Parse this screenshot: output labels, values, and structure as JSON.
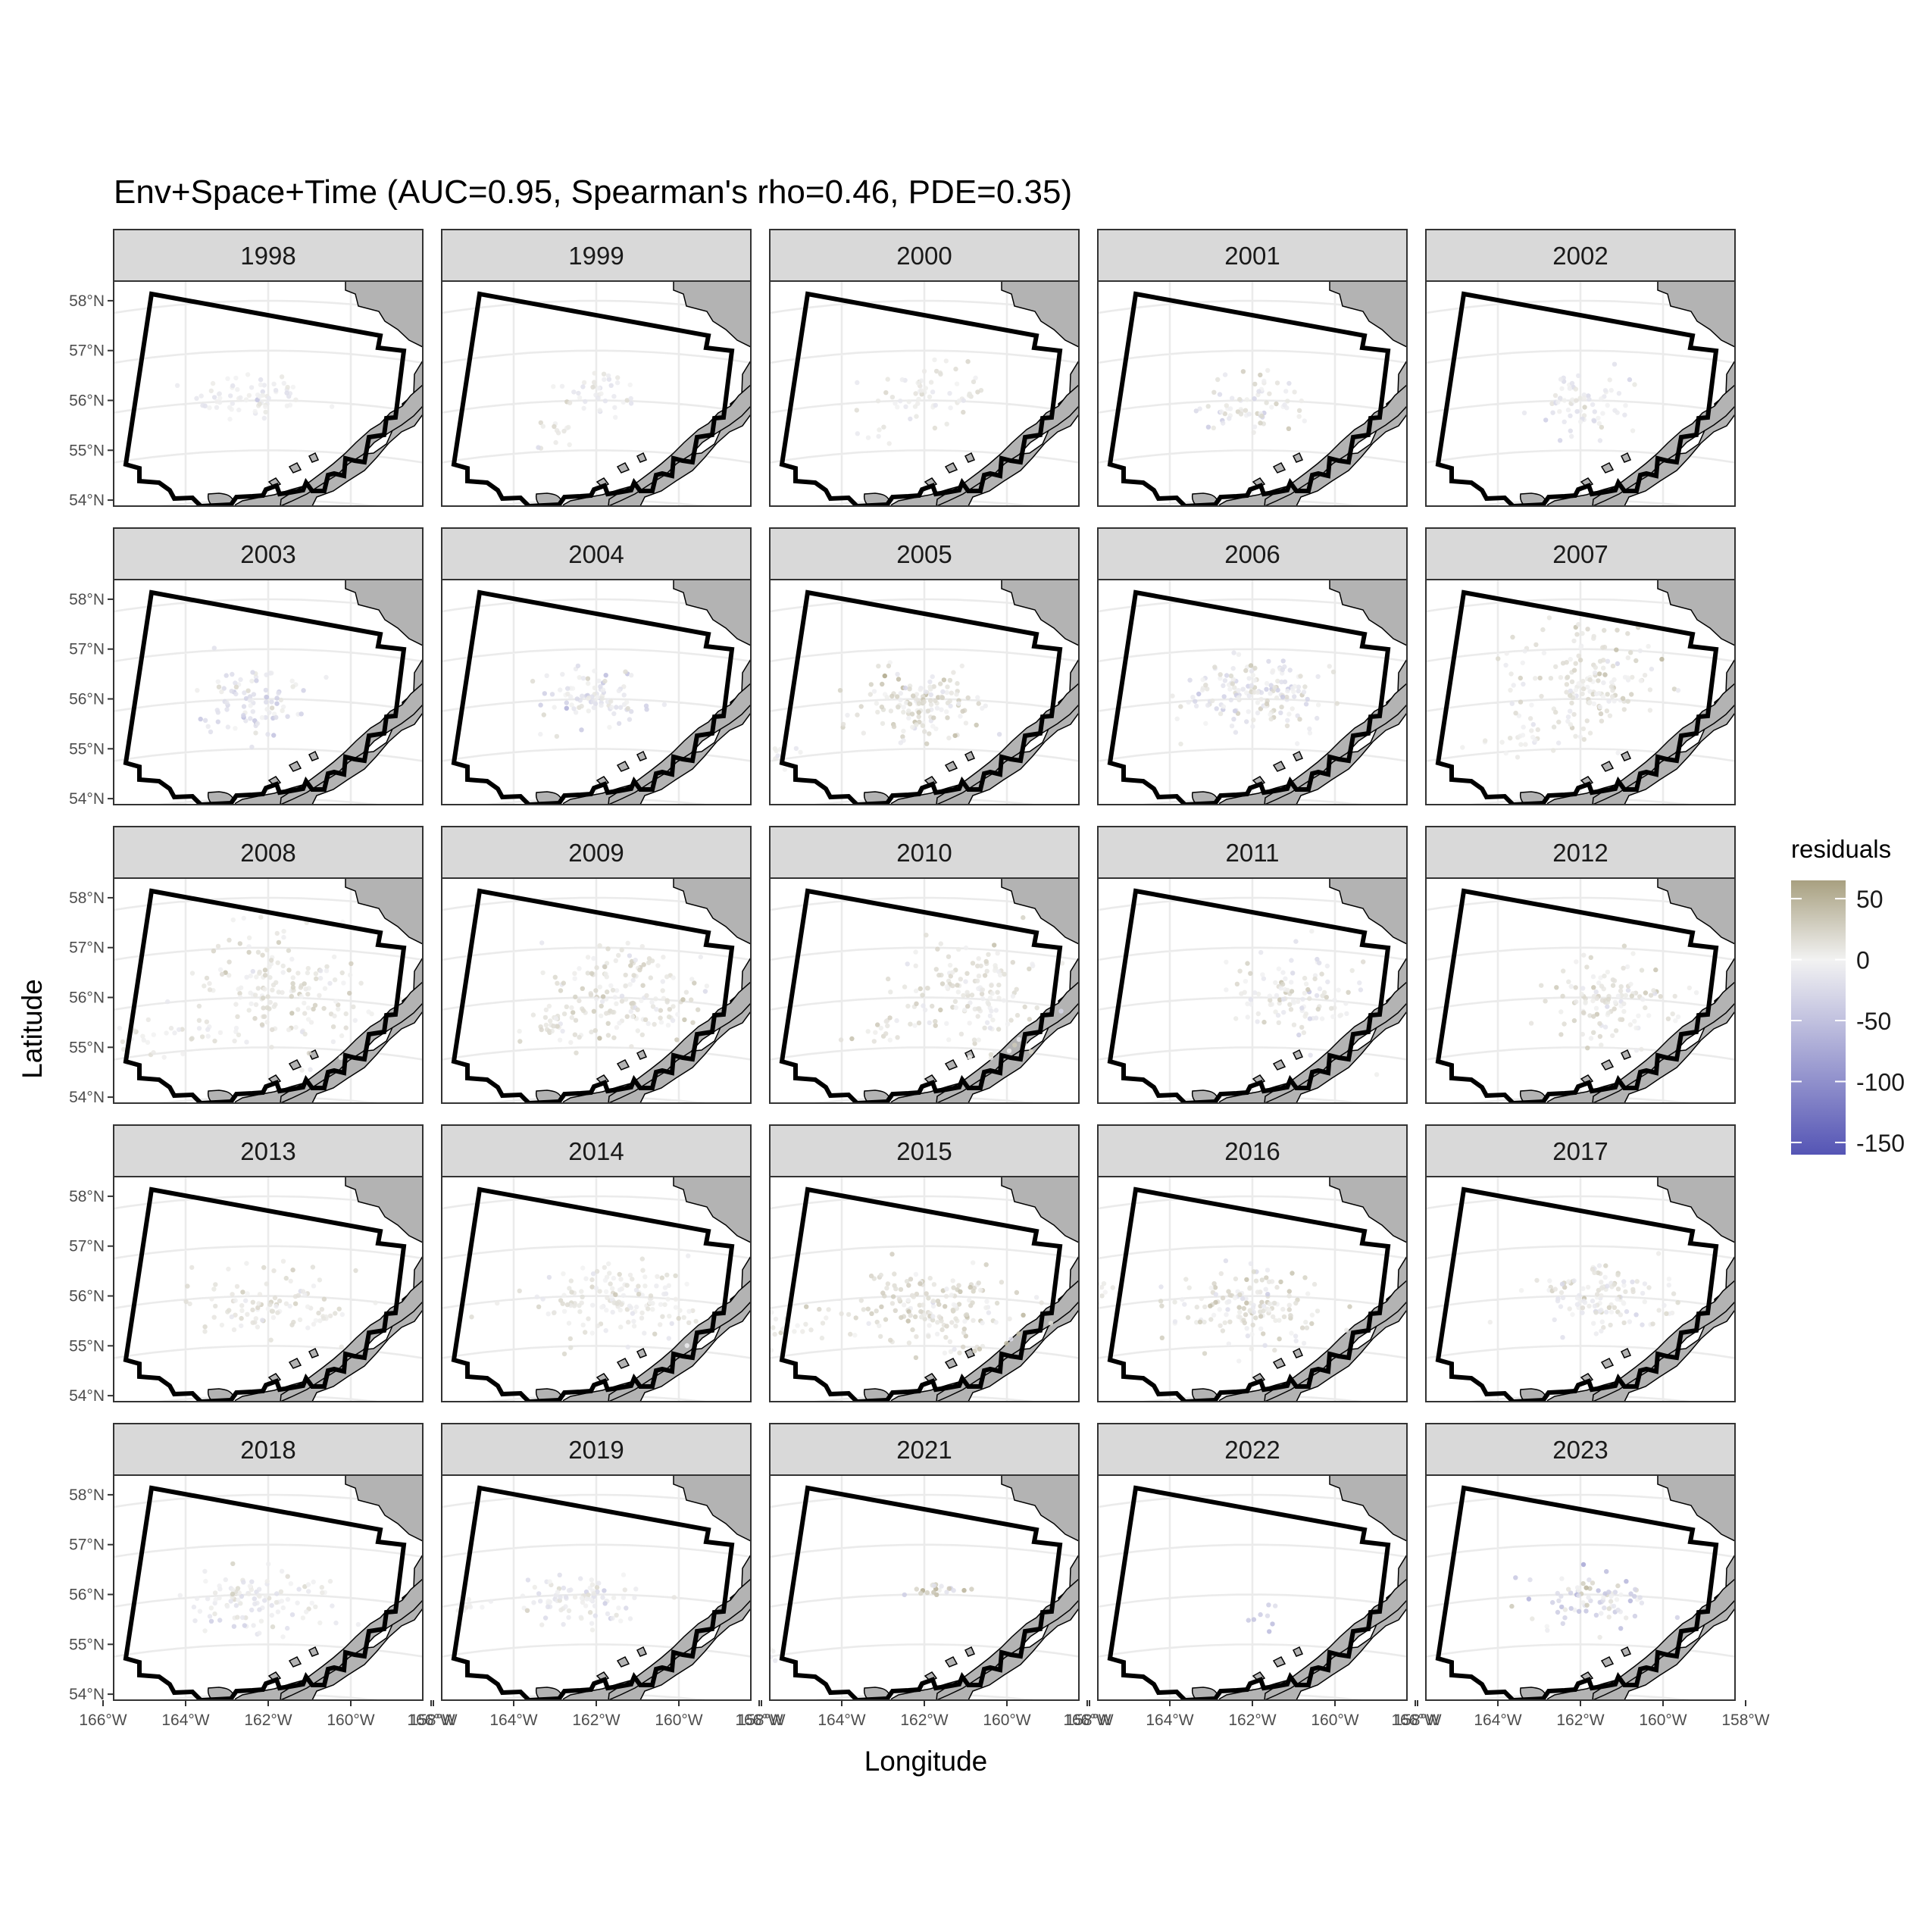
{
  "figure": {
    "title": "Env+Space+Time (AUC=0.95, Spearman's rho=0.46, PDE=0.35)",
    "xlabel": "Longitude",
    "ylabel": "Latitude"
  },
  "chart_data": {
    "type": "scatter",
    "facet_variable": "year",
    "panels": [
      "1998",
      "1999",
      "2000",
      "2001",
      "2002",
      "2003",
      "2004",
      "2005",
      "2006",
      "2007",
      "2008",
      "2009",
      "2010",
      "2011",
      "2012",
      "2013",
      "2014",
      "2015",
      "2016",
      "2017",
      "2018",
      "2019",
      "2021",
      "2022",
      "2023"
    ],
    "x_ticks": [
      "166°W",
      "164°W",
      "162°W",
      "160°W",
      "158°W"
    ],
    "y_ticks": [
      "58°N",
      "57°N",
      "56°N",
      "55°N",
      "54°N"
    ],
    "x_tick_values": [
      -166,
      -164,
      -162,
      -160,
      -158
    ],
    "y_tick_values": [
      58,
      57,
      56,
      55,
      54
    ],
    "xlim": [
      -167.5,
      -157
    ],
    "ylim": [
      54,
      58.5
    ],
    "grid": true,
    "legend": {
      "title": "residuals",
      "placement": "right",
      "ticks": [
        "50",
        "0",
        "-50",
        "-100",
        "-150"
      ],
      "tick_values": [
        50,
        0,
        -50,
        -100,
        -150
      ],
      "range": [
        -160,
        65
      ],
      "colors": {
        "high": "#a8a080",
        "mid": "#f2f2f2",
        "low": "#5555b5"
      }
    },
    "colors": {
      "land": "#b3b3b3",
      "boundary": "#000000",
      "strip_fill": "#d9d9d9",
      "grid": "#ebebeb"
    },
    "point_clusters": {
      "1998": [
        {
          "lon": -162.4,
          "lat": 56.1,
          "sd_lon": 0.7,
          "sd_lat": 0.25,
          "n": 70,
          "mean": -5,
          "sd": 10
        }
      ],
      "1999": [
        {
          "lon": -162.0,
          "lat": 56.1,
          "sd_lon": 0.6,
          "sd_lat": 0.3,
          "n": 40,
          "mean": 0,
          "sd": 12
        },
        {
          "lon": -163.0,
          "lat": 55.4,
          "sd_lon": 0.25,
          "sd_lat": 0.2,
          "n": 12,
          "mean": 10,
          "sd": 8
        }
      ],
      "2000": [
        {
          "lon": -161.9,
          "lat": 56.1,
          "sd_lon": 0.7,
          "sd_lat": 0.3,
          "n": 60,
          "mean": 5,
          "sd": 10
        },
        {
          "lon": -163.0,
          "lat": 55.4,
          "sd_lon": 0.3,
          "sd_lat": 0.15,
          "n": 6,
          "mean": 5,
          "sd": 8
        }
      ],
      "2001": [
        {
          "lon": -161.8,
          "lat": 56.0,
          "sd_lon": 0.7,
          "sd_lat": 0.3,
          "n": 60,
          "mean": 0,
          "sd": 15
        },
        {
          "lon": -162.5,
          "lat": 55.6,
          "sd_lon": 0.3,
          "sd_lat": 0.15,
          "n": 8,
          "mean": -30,
          "sd": 20
        }
      ],
      "2002": [
        {
          "lon": -162.0,
          "lat": 55.9,
          "sd_lon": 0.6,
          "sd_lat": 0.3,
          "n": 70,
          "mean": -5,
          "sd": 12
        }
      ],
      "2003": [
        {
          "lon": -162.4,
          "lat": 56.0,
          "sd_lon": 0.6,
          "sd_lat": 0.35,
          "n": 90,
          "mean": -15,
          "sd": 18
        }
      ],
      "2004": [
        {
          "lon": -162.1,
          "lat": 56.0,
          "sd_lon": 0.6,
          "sd_lat": 0.35,
          "n": 90,
          "mean": -10,
          "sd": 15
        }
      ],
      "2005": [
        {
          "lon": -162.0,
          "lat": 55.9,
          "sd_lon": 0.8,
          "sd_lat": 0.35,
          "n": 140,
          "mean": 10,
          "sd": 15
        },
        {
          "lon": -165.5,
          "lat": 55.2,
          "sd_lon": 0.5,
          "sd_lat": 0.15,
          "n": 10,
          "mean": 0,
          "sd": 5
        }
      ],
      "2006": [
        {
          "lon": -161.9,
          "lat": 56.1,
          "sd_lon": 0.9,
          "sd_lat": 0.4,
          "n": 160,
          "mean": 0,
          "sd": 18
        }
      ],
      "2007": [
        {
          "lon": -161.8,
          "lat": 56.4,
          "sd_lon": 0.9,
          "sd_lat": 0.55,
          "n": 160,
          "mean": 10,
          "sd": 12
        },
        {
          "lon": -163.5,
          "lat": 55.2,
          "sd_lon": 0.6,
          "sd_lat": 0.15,
          "n": 25,
          "mean": 5,
          "sd": 8
        }
      ],
      "2008": [
        {
          "lon": -161.7,
          "lat": 56.2,
          "sd_lon": 1.0,
          "sd_lat": 0.55,
          "n": 170,
          "mean": 10,
          "sd": 12
        },
        {
          "lon": -164.5,
          "lat": 55.3,
          "sd_lon": 0.7,
          "sd_lat": 0.25,
          "n": 30,
          "mean": 5,
          "sd": 8
        }
      ],
      "2009": [
        {
          "lon": -161.3,
          "lat": 56.2,
          "sd_lon": 1.0,
          "sd_lat": 0.5,
          "n": 160,
          "mean": 10,
          "sd": 12
        },
        {
          "lon": -163.0,
          "lat": 55.5,
          "sd_lon": 0.5,
          "sd_lat": 0.25,
          "n": 30,
          "mean": 10,
          "sd": 8
        }
      ],
      "2010": [
        {
          "lon": -160.8,
          "lat": 56.1,
          "sd_lon": 0.9,
          "sd_lat": 0.55,
          "n": 150,
          "mean": 10,
          "sd": 12
        },
        {
          "lon": -163.0,
          "lat": 55.4,
          "sd_lon": 0.4,
          "sd_lat": 0.15,
          "n": 15,
          "mean": 10,
          "sd": 8
        }
      ],
      "2011": [
        {
          "lon": -160.9,
          "lat": 56.0,
          "sd_lon": 0.8,
          "sd_lat": 0.45,
          "n": 110,
          "mean": 0,
          "sd": 15
        }
      ],
      "2012": [
        {
          "lon": -161.2,
          "lat": 55.9,
          "sd_lon": 0.9,
          "sd_lat": 0.45,
          "n": 120,
          "mean": 10,
          "sd": 12
        }
      ],
      "2013": [
        {
          "lon": -161.8,
          "lat": 55.8,
          "sd_lon": 1.0,
          "sd_lat": 0.35,
          "n": 100,
          "mean": 10,
          "sd": 10
        }
      ],
      "2014": [
        {
          "lon": -161.6,
          "lat": 55.9,
          "sd_lon": 1.0,
          "sd_lat": 0.35,
          "n": 150,
          "mean": 5,
          "sd": 10
        }
      ],
      "2015": [
        {
          "lon": -161.8,
          "lat": 55.8,
          "sd_lon": 1.1,
          "sd_lat": 0.35,
          "n": 170,
          "mean": 15,
          "sd": 12
        },
        {
          "lon": -165.0,
          "lat": 55.5,
          "sd_lon": 0.8,
          "sd_lat": 0.3,
          "n": 25,
          "mean": 5,
          "sd": 5
        }
      ],
      "2016": [
        {
          "lon": -162.0,
          "lat": 55.8,
          "sd_lon": 0.9,
          "sd_lat": 0.35,
          "n": 150,
          "mean": 10,
          "sd": 15
        },
        {
          "lon": -165.8,
          "lat": 56.3,
          "sd_lon": 0.3,
          "sd_lat": 0.2,
          "n": 15,
          "mean": 5,
          "sd": 5
        }
      ],
      "2017": [
        {
          "lon": -161.3,
          "lat": 56.0,
          "sd_lon": 0.8,
          "sd_lat": 0.3,
          "n": 120,
          "mean": 0,
          "sd": 15
        }
      ],
      "2018": [
        {
          "lon": -162.3,
          "lat": 55.9,
          "sd_lon": 0.9,
          "sd_lat": 0.3,
          "n": 110,
          "mean": -5,
          "sd": 12
        }
      ],
      "2019": [
        {
          "lon": -162.4,
          "lat": 55.9,
          "sd_lon": 0.7,
          "sd_lat": 0.3,
          "n": 90,
          "mean": -5,
          "sd": 12
        },
        {
          "lon": -165.2,
          "lat": 56.0,
          "sd_lon": 0.3,
          "sd_lat": 0.1,
          "n": 8,
          "mean": 0,
          "sd": 5
        }
      ],
      "2021": [
        {
          "lon": -161.7,
          "lat": 56.1,
          "sd_lon": 0.35,
          "sd_lat": 0.06,
          "n": 20,
          "mean": 20,
          "sd": 30
        },
        {
          "lon": -166.2,
          "lat": 54.9,
          "sd_lon": 0.35,
          "sd_lat": 0.25,
          "n": 25,
          "mean": 0,
          "sd": 5
        }
      ],
      "2022": [
        {
          "lon": -161.7,
          "lat": 55.6,
          "sd_lon": 0.2,
          "sd_lat": 0.15,
          "n": 8,
          "mean": -40,
          "sd": 30
        }
      ],
      "2023": [
        {
          "lon": -161.8,
          "lat": 55.9,
          "sd_lon": 0.7,
          "sd_lat": 0.3,
          "n": 80,
          "mean": -15,
          "sd": 25
        }
      ]
    }
  }
}
